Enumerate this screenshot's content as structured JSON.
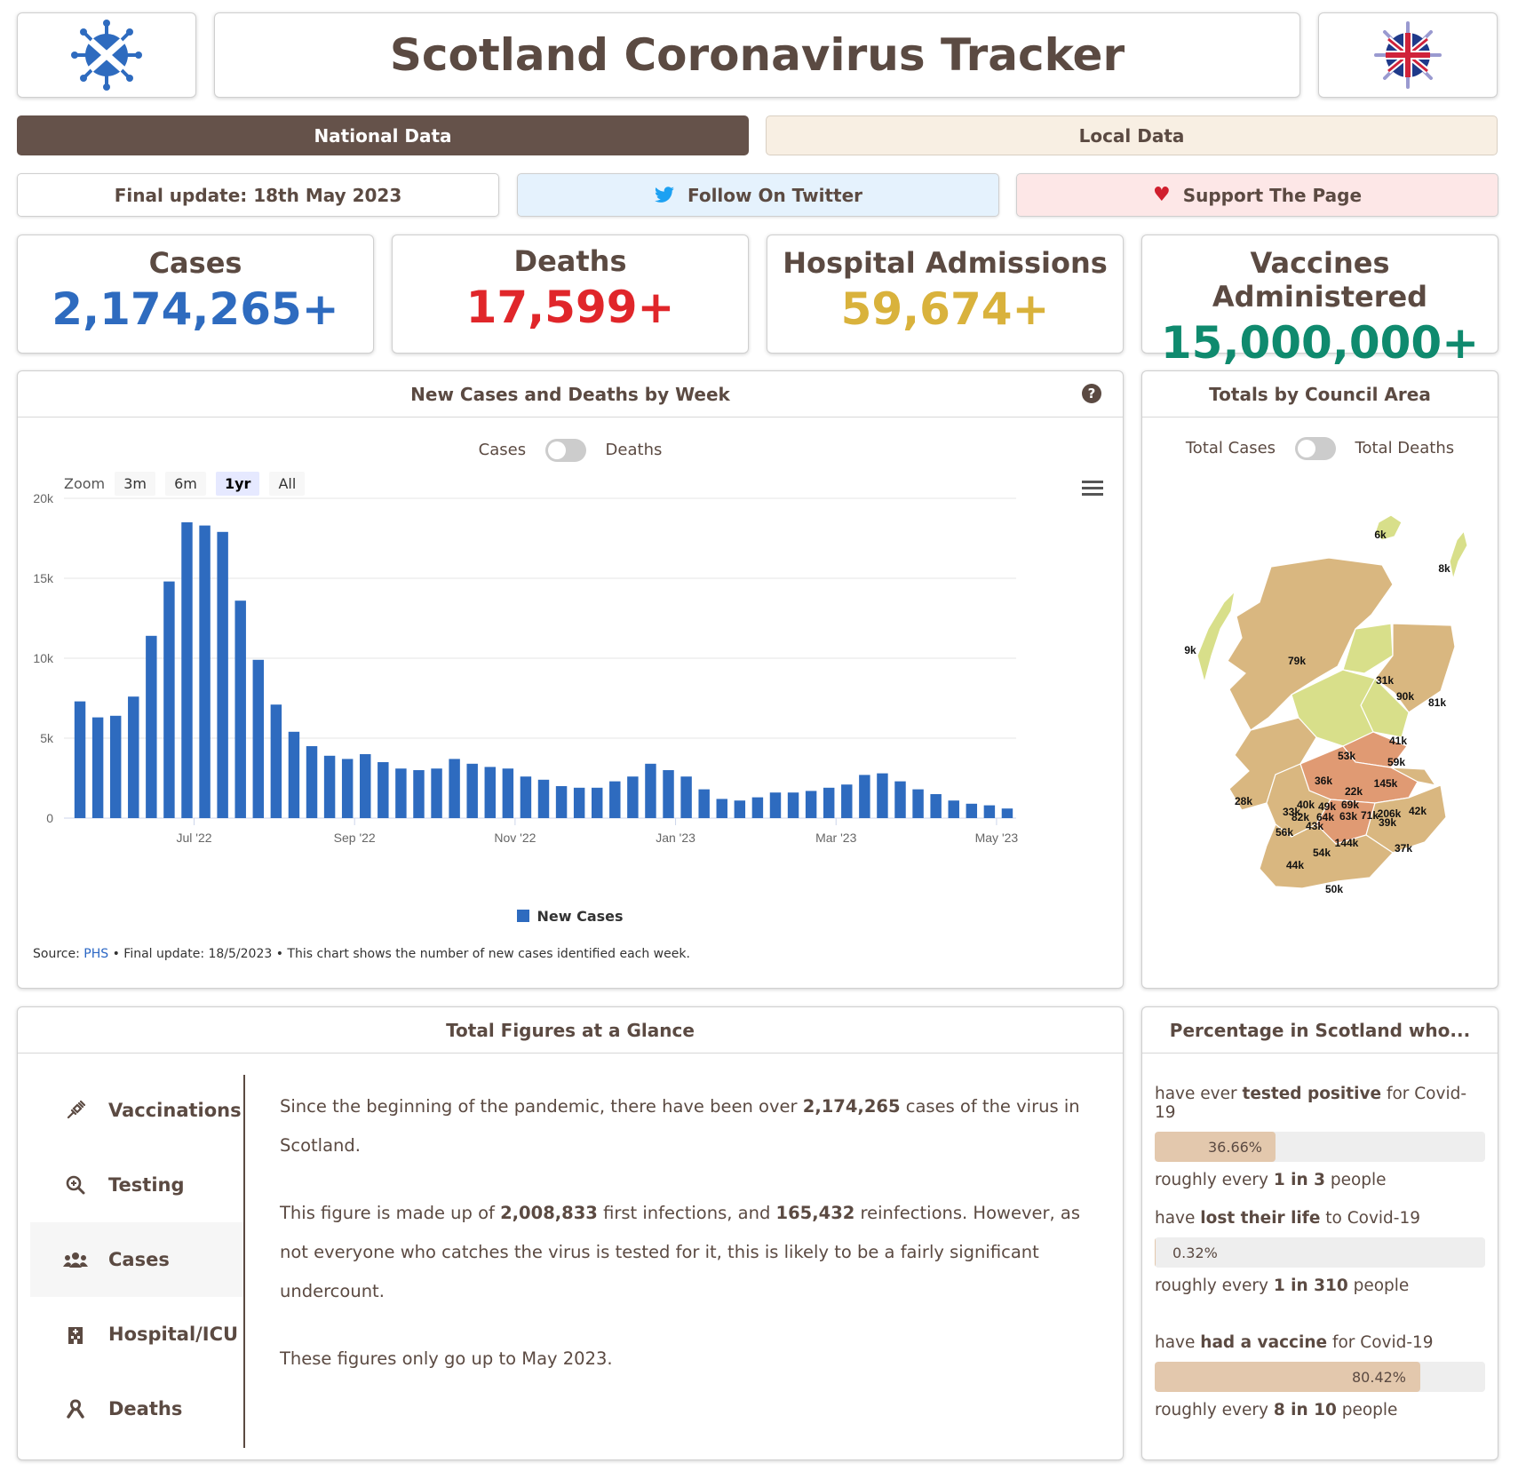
{
  "header": {
    "title": "Scotland Coronavirus Tracker",
    "left_logo_icon": "scotland-virus-logo",
    "right_logo_icon": "uk-virus-logo"
  },
  "tabs": [
    {
      "label": "National Data",
      "active": true
    },
    {
      "label": "Local Data",
      "active": false
    }
  ],
  "info_bar": {
    "final_update": "Final update: 18th May 2023",
    "twitter": "Follow On Twitter",
    "support": "Support The Page"
  },
  "stats": [
    {
      "label": "Cases",
      "value": "2,174,265+",
      "color": "#2e6bbf"
    },
    {
      "label": "Deaths",
      "value": "17,599+",
      "color": "#e0262a"
    },
    {
      "label": "Hospital Admissions",
      "value": "59,674+",
      "color": "#d9b23c"
    },
    {
      "label": "Vaccines Administered",
      "value": "15,000,000+",
      "color": "#0f8a6e"
    }
  ],
  "weekly_chart": {
    "heading": "New Cases and Deaths by Week",
    "toggle_left": "Cases",
    "toggle_right": "Deaths",
    "zoom_label": "Zoom",
    "zoom_options": [
      "3m",
      "6m",
      "1yr",
      "All"
    ],
    "zoom_active": "1yr",
    "source_prefix": "Source: ",
    "source_link": "PHS",
    "source_suffix": " • Final update: 18/5/2023 • This chart shows the number of new cases identified each week."
  },
  "chart_data": {
    "type": "bar",
    "title": "",
    "xlabel": "",
    "ylabel": "",
    "ylim": [
      0,
      20000
    ],
    "y_ticks": [
      "0",
      "5k",
      "10k",
      "15k",
      "20k"
    ],
    "x_ticks": [
      "Jul '22",
      "Sep '22",
      "Nov '22",
      "Jan '23",
      "Mar '23",
      "May '23"
    ],
    "legend": "bottom",
    "series": [
      {
        "name": "New Cases",
        "color": "#2e6bbf",
        "values": [
          7300,
          6300,
          6400,
          7600,
          11400,
          14800,
          18500,
          18300,
          17900,
          13600,
          9900,
          7100,
          5400,
          4500,
          3900,
          3700,
          4000,
          3500,
          3100,
          3000,
          3100,
          3700,
          3400,
          3200,
          3100,
          2600,
          2400,
          2000,
          1900,
          1900,
          2300,
          2600,
          3400,
          3000,
          2600,
          1800,
          1200,
          1100,
          1300,
          1600,
          1600,
          1700,
          1900,
          2100,
          2700,
          2800,
          2300,
          1800,
          1500,
          1100,
          900,
          800,
          600
        ]
      }
    ]
  },
  "council_map": {
    "heading": "Totals by Council Area",
    "toggle_left": "Total Cases",
    "toggle_right": "Total Deaths",
    "labels": [
      "6k",
      "8k",
      "9k",
      "79k",
      "31k",
      "90k",
      "81k",
      "41k",
      "53k",
      "59k",
      "36k",
      "22k",
      "145k",
      "28k",
      "40k",
      "49k",
      "69k",
      "33k",
      "82k",
      "64k",
      "63k",
      "71k",
      "206k",
      "42k",
      "43k",
      "39k",
      "56k",
      "144k",
      "54k",
      "37k",
      "44k",
      "50k"
    ]
  },
  "glance": {
    "heading": "Total Figures at a Glance",
    "nav": [
      {
        "label": "Vaccinations",
        "icon": "syringe-icon"
      },
      {
        "label": "Testing",
        "icon": "magnifier-icon"
      },
      {
        "label": "Cases",
        "icon": "users-icon",
        "active": true
      },
      {
        "label": "Hospital/ICU",
        "icon": "hospital-icon"
      },
      {
        "label": "Deaths",
        "icon": "ribbon-icon"
      }
    ],
    "p1_a": "Since the beginning of the pandemic, there have been over ",
    "p1_b": "2,174,265",
    "p1_c": " cases of the virus in Scotland.",
    "p2_a": "This figure is made up of ",
    "p2_b": "2,008,833",
    "p2_c": " first infections, and ",
    "p2_d": "165,432",
    "p2_e": " reinfections. However, as not everyone who catches the virus is tested for it, this is likely to be a fairly significant undercount.",
    "p3": "These figures only go up to May 2023."
  },
  "percentages": {
    "heading": "Percentage in Scotland who...",
    "rows": [
      {
        "pre": "have ever ",
        "bold": "tested positive",
        "post": " for Covid-19",
        "pct": "36.66%",
        "value": 36.66,
        "rough_pre": "roughly every ",
        "rough_bold": "1 in 3",
        "rough_post": " people"
      },
      {
        "pre": "have ",
        "bold": "lost their life",
        "post": " to Covid-19",
        "pct": "0.32%",
        "value": 0.32,
        "rough_pre": "roughly every ",
        "rough_bold": "1 in 310",
        "rough_post": " people"
      },
      {
        "pre": "have ",
        "bold": "had a vaccine",
        "post": " for Covid-19",
        "pct": "80.42%",
        "value": 80.42,
        "rough_pre": "roughly every ",
        "rough_bold": "8 in 10",
        "rough_post": " people"
      }
    ]
  }
}
